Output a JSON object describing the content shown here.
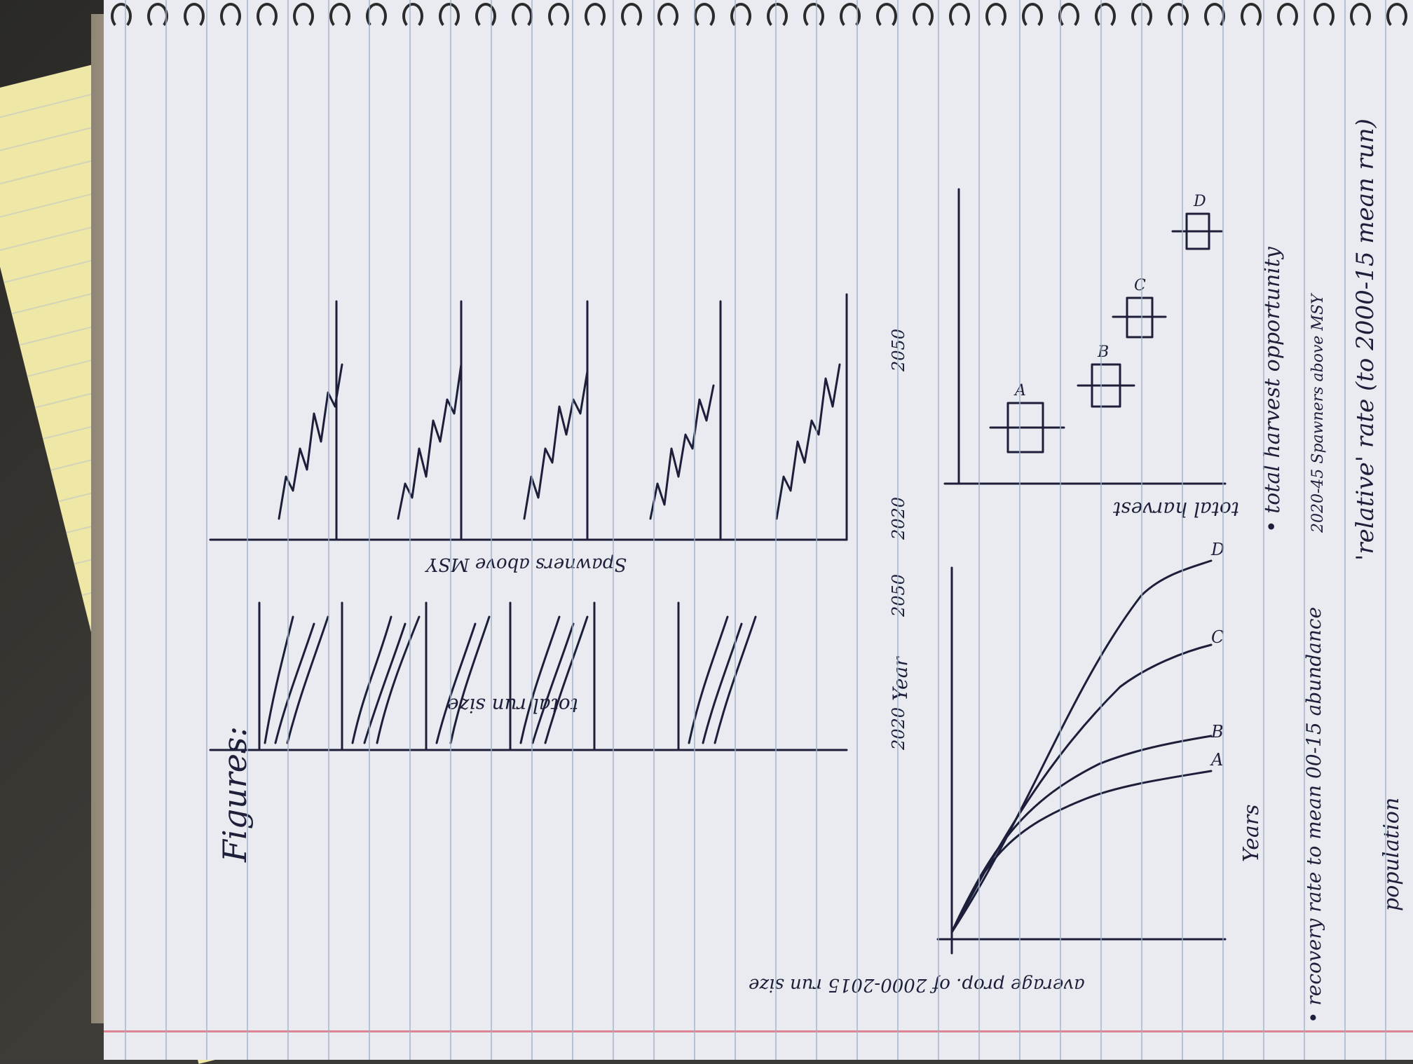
{
  "notebook": {
    "heading": "Figures:",
    "panel_1": {
      "ylabel": "total run size",
      "xtick_start": "2020",
      "xlabel": "Year",
      "xtick_end": "2050"
    },
    "panel_2": {
      "ylabel": "Spawners above MSY",
      "xtick_start": "2020",
      "xtick_end": "2050"
    },
    "panel_3": {
      "ylabel": "average prop. of 2000-2015 run size",
      "xlabel": "Years",
      "curve_labels": [
        "A",
        "B",
        "C",
        "D"
      ]
    },
    "panel_4": {
      "ylabel": "total harvest",
      "box_labels": [
        "A",
        "B",
        "C",
        "D"
      ]
    },
    "notes": [
      "• total harvest opportunity",
      "2020-45 Spawners above MSY",
      "• recovery rate to mean 00-15 abundance",
      "'relative' rate (to 2000-15 mean run)",
      "population"
    ]
  },
  "colors": {
    "ink": "#1d1f3a",
    "paper": "#e9ebf0",
    "rule": "#9fb1c6",
    "margin": "#d86a7a",
    "legal_pad": "#efe7a6"
  }
}
